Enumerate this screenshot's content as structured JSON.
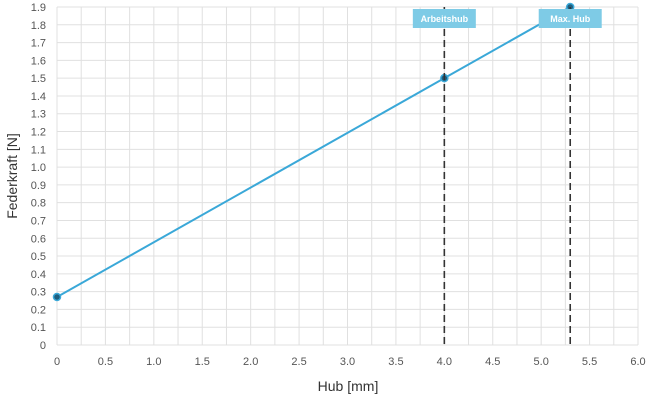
{
  "chart_data": {
    "type": "line",
    "xlabel": "Hub [mm]",
    "ylabel": "Federkraft [N]",
    "xlim": [
      0,
      6.0
    ],
    "ylim": [
      0,
      1.9
    ],
    "x_ticks": [
      "0",
      "0.5",
      "1.0",
      "1.5",
      "2.0",
      "2.5",
      "3.0",
      "3.5",
      "4.0",
      "4.5",
      "5.0",
      "5.5",
      "6.0"
    ],
    "y_ticks": [
      "0",
      "0.1",
      "0.2",
      "0.3",
      "0.4",
      "0.5",
      "0.6",
      "0.7",
      "0.8",
      "0.9",
      "1.0",
      "1.1",
      "1.2",
      "1.3",
      "1.4",
      "1.5",
      "1.6",
      "1.7",
      "1.8",
      "1.9"
    ],
    "grid": true,
    "series": [
      {
        "color": "#3aa8d8",
        "points": [
          {
            "x": 0,
            "y": 0.27
          },
          {
            "x": 4.0,
            "y": 1.5
          },
          {
            "x": 5.3,
            "y": 1.9
          }
        ]
      }
    ],
    "annotations": [
      {
        "label": "Arbeitshub",
        "x": 4.0
      },
      {
        "label": "Max. Hub",
        "x": 5.3
      }
    ],
    "colors": {
      "line": "#3aa8d8",
      "marker_fill": "#1f5f7f",
      "label_bg": "#7ecbe6",
      "grid": "#e0e0e0",
      "dashed": "#333333"
    }
  }
}
